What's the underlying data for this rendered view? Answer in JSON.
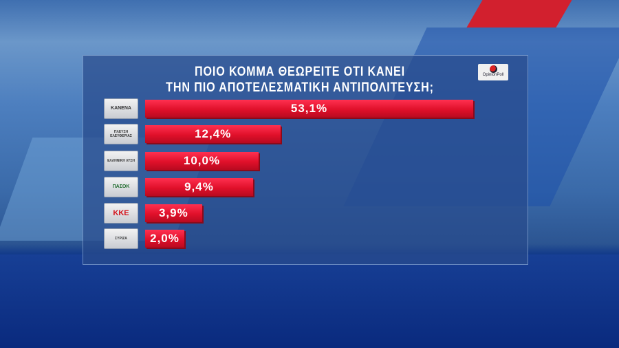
{
  "title_line1": "ΠΟΙΟ ΚΟΜΜΑ ΘΕΩΡΕΙΤΕ ΟΤΙ ΚΑΝΕΙ",
  "title_line2": "ΤΗΝ ΠΙΟ ΑΠΟΤΕΛΕΣΜΑΤΙΚΗ ΑΝΤΙΠΟΛΙΤΕΥΣΗ;",
  "pollster_logo": "OpinionPoll",
  "colors": {
    "bar": "#e0102a",
    "panel": "#284b8c"
  },
  "chart_data": {
    "type": "bar",
    "orientation": "horizontal",
    "categories": [
      "ΚΑΝΕΝΑ",
      "ΠΛΕΥΣΗ ΕΛΕΥΘΕΡΙΑΣ",
      "ΕΛΛΗΝΙΚΗ ΛΥΣΗ",
      "ΠΑΣΟΚ",
      "ΚΚΕ",
      "ΣΥΡΙΖΑ"
    ],
    "values": [
      53.1,
      12.4,
      10.0,
      9.4,
      3.9,
      2.0
    ],
    "labels": [
      "53,1%",
      "12,4%",
      "10,0%",
      "9,4%",
      "3,9%",
      "2,0%"
    ],
    "unit": "%"
  }
}
